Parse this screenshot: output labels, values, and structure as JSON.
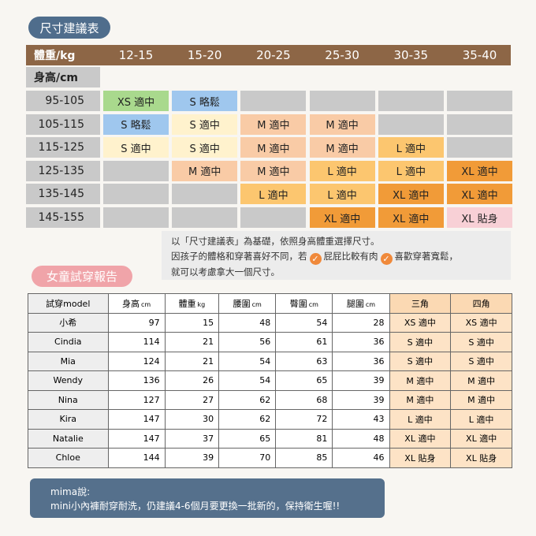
{
  "size_chart": {
    "badge": "尺寸建議表",
    "header_label": "體重/kg",
    "weights": [
      "12-15",
      "15-20",
      "20-25",
      "25-30",
      "30-35",
      "35-40"
    ],
    "height_label": "身高/cm",
    "rows": [
      {
        "height": "95-105",
        "cells": [
          {
            "text": "XS 適中",
            "color": "#a9d98d"
          },
          {
            "text": "S 略鬆",
            "color": "#9fc7ee"
          },
          {
            "color": "#c9c9c9"
          },
          {
            "color": "#c9c9c9"
          },
          {
            "color": "#c9c9c9"
          },
          {
            "color": "#c9c9c9"
          }
        ]
      },
      {
        "height": "105-115",
        "cells": [
          {
            "text": "S 略鬆",
            "color": "#9fc7ee"
          },
          {
            "text": "S 適中",
            "color": "#fff2cd"
          },
          {
            "text": "M 適中",
            "color": "#f9cba6"
          },
          {
            "text": "M 適中",
            "color": "#f9cba6"
          },
          {
            "color": "#c9c9c9"
          },
          {
            "color": "#c9c9c9"
          }
        ]
      },
      {
        "height": "115-125",
        "cells": [
          {
            "text": "S 適中",
            "color": "#fff2cd"
          },
          {
            "text": "S 適中",
            "color": "#fff2cd"
          },
          {
            "text": "M 適中",
            "color": "#f9cba6"
          },
          {
            "text": "M 適中",
            "color": "#f9cba6"
          },
          {
            "text": "L 適中",
            "color": "#fcc66f"
          },
          {
            "color": "#c9c9c9"
          }
        ]
      },
      {
        "height": "125-135",
        "cells": [
          {
            "color": "#c9c9c9"
          },
          {
            "text": "M 適中",
            "color": "#f9cba6"
          },
          {
            "text": "M 適中",
            "color": "#f9cba6"
          },
          {
            "text": "L 適中",
            "color": "#fcc66f"
          },
          {
            "text": "L 適中",
            "color": "#fcc66f"
          },
          {
            "text": "XL 適中",
            "color": "#f19b38"
          }
        ]
      },
      {
        "height": "135-145",
        "cells": [
          {
            "color": "#c9c9c9"
          },
          {
            "color": "#c9c9c9"
          },
          {
            "text": "L 適中",
            "color": "#fcc66f"
          },
          {
            "text": "L 適中",
            "color": "#fcc66f"
          },
          {
            "text": "XL 適中",
            "color": "#f19b38"
          },
          {
            "text": "XL 適中",
            "color": "#f19b38"
          }
        ]
      },
      {
        "height": "145-155",
        "cells": [
          {
            "color": "#c9c9c9"
          },
          {
            "color": "#c9c9c9"
          },
          {
            "color": "#c9c9c9"
          },
          {
            "text": "XL 適中",
            "color": "#f19b38"
          },
          {
            "text": "XL 適中",
            "color": "#f19b38"
          },
          {
            "text": "XL 貼身",
            "color": "#f8d0d6"
          }
        ]
      }
    ]
  },
  "note": {
    "line1": "以「尺寸建議表」為基礎，依照身高體重選擇尺寸。",
    "line2_start": "因孩子的體格和穿著喜好不同，若",
    "option1": "屁屁比較有肉",
    "option2": "喜歡穿著寬鬆，",
    "line3": "就可以考慮拿大一個尺寸。"
  },
  "report": {
    "badge": "女童試穿報告",
    "headers": [
      {
        "label": "試穿model"
      },
      {
        "label": "身高",
        "unit": "cm"
      },
      {
        "label": "體重",
        "unit": "kg"
      },
      {
        "label": "腰圍",
        "unit": "cm"
      },
      {
        "label": "臀圍",
        "unit": "cm"
      },
      {
        "label": "腿圍",
        "unit": "cm"
      },
      {
        "label": "三角"
      },
      {
        "label": "四角"
      }
    ],
    "rows": [
      [
        "小希",
        97,
        15,
        48,
        54,
        28,
        "XS 適中",
        "XS 適中"
      ],
      [
        "Cindia",
        114,
        21,
        56,
        61,
        36,
        "S 適中",
        "S 適中"
      ],
      [
        "Mia",
        124,
        21,
        54,
        63,
        36,
        "S 適中",
        "S 適中"
      ],
      [
        "Wendy",
        136,
        26,
        54,
        65,
        39,
        "M 適中",
        "M 適中"
      ],
      [
        "Nina",
        127,
        27,
        62,
        68,
        39,
        "M 適中",
        "M 適中"
      ],
      [
        "Kira",
        147,
        30,
        62,
        72,
        43,
        "L 適中",
        "L 適中"
      ],
      [
        "Natalie",
        147,
        37,
        65,
        81,
        48,
        "XL 適中",
        "XL 適中"
      ],
      [
        "Chloe",
        144,
        39,
        70,
        85,
        46,
        "XL 貼身",
        "XL 貼身"
      ]
    ]
  },
  "footer": {
    "title": "mima說:",
    "text": "mini小內褲耐穿耐洗，仍建議4-6個月要更換一批新的，保持衛生喔!!"
  }
}
